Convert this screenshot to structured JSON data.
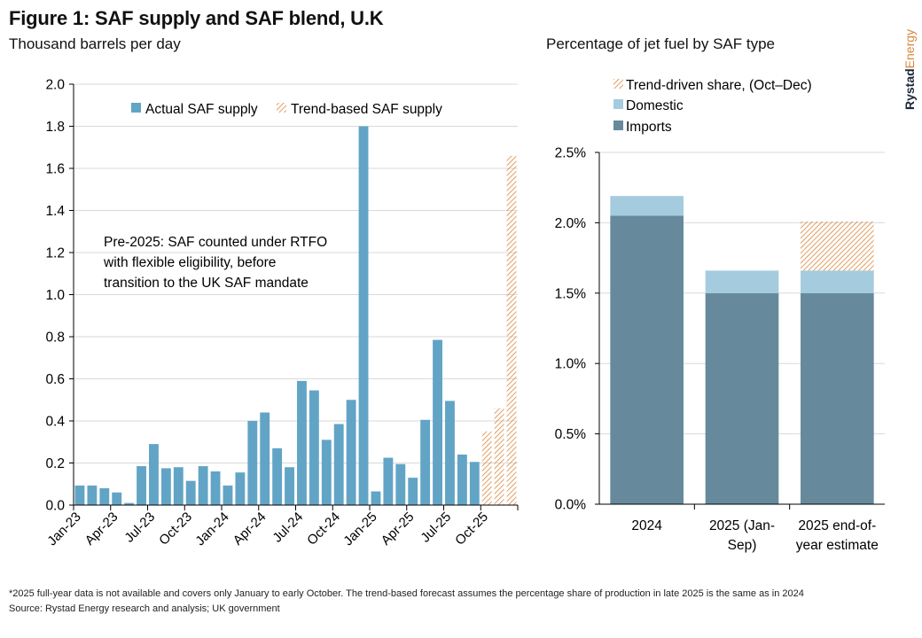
{
  "header": {
    "title": "Figure 1: SAF supply and SAF blend, U.K",
    "subtitle": "Thousand barrels per day",
    "right_title": "Percentage of jet fuel by SAF type"
  },
  "logo": {
    "part1": "Rystad",
    "part2": "Energy"
  },
  "footer": {
    "footnote": "*2025 full-year data is not available and covers only January to early October. The trend-based forecast assumes the percentage share of production in late 2025 is the same as in 2024",
    "source": "Source: Rystad Energy research and analysis; UK government"
  },
  "colors": {
    "actual": "#62a4c5",
    "trend": "#d9863a",
    "domestic": "#a5cbdf",
    "imports": "#668a9c",
    "grid": "#d9d9d9",
    "axis": "#000000"
  },
  "chart_data": [
    {
      "type": "bar",
      "title": "SAF supply",
      "ylabel": "Thousand barrels per day",
      "ylim": [
        0,
        2.0
      ],
      "yticks": [
        "0.0",
        "0.2",
        "0.4",
        "0.6",
        "0.8",
        "1.0",
        "1.2",
        "1.4",
        "1.6",
        "1.8",
        "2.0"
      ],
      "grid": true,
      "legend": {
        "position": "top-center",
        "entries": [
          "Actual SAF supply",
          "Trend-based SAF supply"
        ]
      },
      "xtick_labels": [
        "Jan-23",
        "Apr-23",
        "Jul-23",
        "Oct-23",
        "Jan-24",
        "Apr-24",
        "Jul-24",
        "Oct-24",
        "Jan-25",
        "Apr-25",
        "Jul-25",
        "Oct-25"
      ],
      "annotation": [
        "Pre-2025: SAF counted under RTFO",
        "with flexible eligibility, before",
        "transition to the UK SAF mandate"
      ],
      "categories": [
        "Jan-23",
        "Feb-23",
        "Mar-23",
        "Apr-23",
        "May-23",
        "Jun-23",
        "Jul-23",
        "Aug-23",
        "Sep-23",
        "Oct-23",
        "Nov-23",
        "Dec-23",
        "Jan-24",
        "Feb-24",
        "Mar-24",
        "Apr-24",
        "May-24",
        "Jun-24",
        "Jul-24",
        "Aug-24",
        "Sep-24",
        "Oct-24",
        "Nov-24",
        "Dec-24",
        "Jan-25",
        "Feb-25",
        "Mar-25",
        "Apr-25",
        "May-25",
        "Jun-25",
        "Jul-25",
        "Aug-25",
        "Sep-25",
        "Oct-25",
        "Nov-25",
        "Dec-25"
      ],
      "series": [
        {
          "name": "Actual SAF supply",
          "values": [
            0.093,
            0.093,
            0.08,
            0.06,
            0.01,
            0.185,
            0.29,
            0.175,
            0.18,
            0.115,
            0.185,
            0.16,
            0.093,
            0.155,
            0.4,
            0.44,
            0.27,
            0.18,
            0.59,
            0.545,
            0.31,
            0.385,
            0.5,
            1.8,
            0.065,
            0.225,
            0.195,
            0.13,
            0.405,
            0.785,
            0.495,
            0.24,
            0.205,
            null,
            null,
            null
          ]
        },
        {
          "name": "Trend-based SAF supply",
          "values": [
            null,
            null,
            null,
            null,
            null,
            null,
            null,
            null,
            null,
            null,
            null,
            null,
            null,
            null,
            null,
            null,
            null,
            null,
            null,
            null,
            null,
            null,
            null,
            null,
            null,
            null,
            null,
            null,
            null,
            null,
            null,
            null,
            null,
            0.35,
            0.46,
            1.66
          ]
        }
      ]
    },
    {
      "type": "bar",
      "stacked": true,
      "title": "Percentage of jet fuel by SAF type",
      "ylim": [
        0,
        2.5
      ],
      "yticks": [
        "0.0%",
        "0.5%",
        "1.0%",
        "1.5%",
        "2.0%",
        "2.5%"
      ],
      "grid": true,
      "legend": {
        "position": "top",
        "entries": [
          "Trend-driven share, (Oct–Dec)",
          "Domestic",
          "Imports"
        ]
      },
      "categories": [
        [
          "2024"
        ],
        [
          "2025 (Jan-",
          "Sep)"
        ],
        [
          "2025 end-of-",
          "year estimate"
        ]
      ],
      "series": [
        {
          "name": "Imports",
          "values": [
            2.05,
            1.5,
            1.5
          ]
        },
        {
          "name": "Domestic",
          "values": [
            0.14,
            0.16,
            0.16
          ]
        },
        {
          "name": "Trend-driven share, (Oct–Dec)",
          "values": [
            0,
            0,
            0.35
          ]
        }
      ]
    }
  ]
}
